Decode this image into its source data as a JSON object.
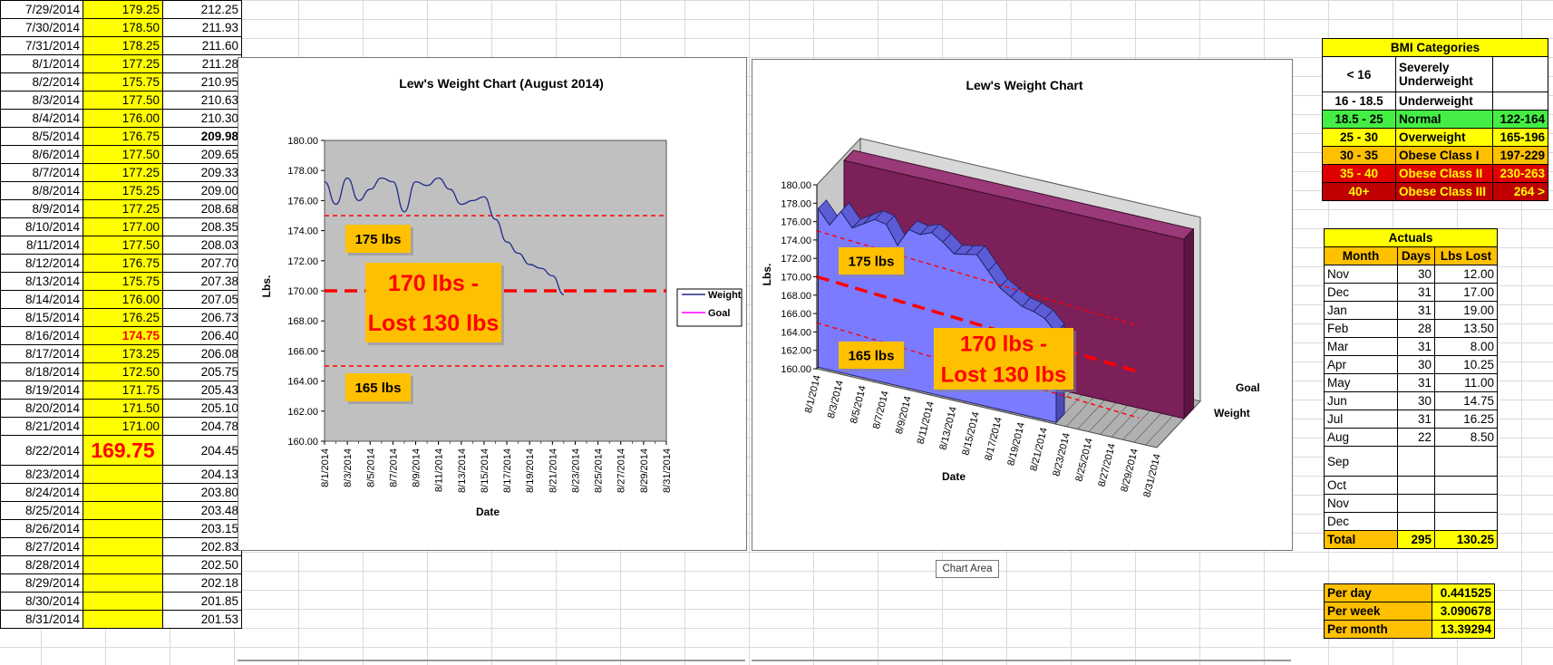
{
  "log": [
    {
      "date": "7/29/2014",
      "weight": "179.25",
      "goal": "212.25"
    },
    {
      "date": "7/30/2014",
      "weight": "178.50",
      "goal": "211.93"
    },
    {
      "date": "7/31/2014",
      "weight": "178.25",
      "goal": "211.60"
    },
    {
      "date": "8/1/2014",
      "weight": "177.25",
      "goal": "211.28"
    },
    {
      "date": "8/2/2014",
      "weight": "175.75",
      "goal": "210.95"
    },
    {
      "date": "8/3/2014",
      "weight": "177.50",
      "goal": "210.63"
    },
    {
      "date": "8/4/2014",
      "weight": "176.00",
      "goal": "210.30"
    },
    {
      "date": "8/5/2014",
      "weight": "176.75",
      "goal": "209.98"
    },
    {
      "date": "8/6/2014",
      "weight": "177.50",
      "goal": "209.65"
    },
    {
      "date": "8/7/2014",
      "weight": "177.25",
      "goal": "209.33"
    },
    {
      "date": "8/8/2014",
      "weight": "175.25",
      "goal": "209.00"
    },
    {
      "date": "8/9/2014",
      "weight": "177.25",
      "goal": "208.68"
    },
    {
      "date": "8/10/2014",
      "weight": "177.00",
      "goal": "208.35"
    },
    {
      "date": "8/11/2014",
      "weight": "177.50",
      "goal": "208.03"
    },
    {
      "date": "8/12/2014",
      "weight": "176.75",
      "goal": "207.70"
    },
    {
      "date": "8/13/2014",
      "weight": "175.75",
      "goal": "207.38"
    },
    {
      "date": "8/14/2014",
      "weight": "176.00",
      "goal": "207.05"
    },
    {
      "date": "8/15/2014",
      "weight": "176.25",
      "goal": "206.73"
    },
    {
      "date": "8/16/2014",
      "weight": "174.75",
      "goal": "206.40"
    },
    {
      "date": "8/17/2014",
      "weight": "173.25",
      "goal": "206.08"
    },
    {
      "date": "8/18/2014",
      "weight": "172.50",
      "goal": "205.75"
    },
    {
      "date": "8/19/2014",
      "weight": "171.75",
      "goal": "205.43"
    },
    {
      "date": "8/20/2014",
      "weight": "171.50",
      "goal": "205.10"
    },
    {
      "date": "8/21/2014",
      "weight": "171.00",
      "goal": "204.78"
    },
    {
      "date": "8/22/2014",
      "weight": "169.75",
      "goal": "204.45"
    },
    {
      "date": "8/23/2014",
      "weight": "",
      "goal": "204.13"
    },
    {
      "date": "8/24/2014",
      "weight": "",
      "goal": "203.80"
    },
    {
      "date": "8/25/2014",
      "weight": "",
      "goal": "203.48"
    },
    {
      "date": "8/26/2014",
      "weight": "",
      "goal": "203.15"
    },
    {
      "date": "8/27/2014",
      "weight": "",
      "goal": "202.83"
    },
    {
      "date": "8/28/2014",
      "weight": "",
      "goal": "202.50"
    },
    {
      "date": "8/29/2014",
      "weight": "",
      "goal": "202.18"
    },
    {
      "date": "8/30/2014",
      "weight": "",
      "goal": "201.85"
    },
    {
      "date": "8/31/2014",
      "weight": "",
      "goal": "201.53"
    }
  ],
  "chart_data": [
    {
      "type": "line",
      "title": "Lew's Weight Chart (August 2014)",
      "xlabel": "Date",
      "ylabel": "Lbs.",
      "ylim": [
        160,
        180
      ],
      "yticks": [
        "180.00",
        "178.00",
        "176.00",
        "174.00",
        "172.00",
        "170.00",
        "168.00",
        "166.00",
        "164.00",
        "162.00",
        "160.00"
      ],
      "xticks": [
        "8/1/2014",
        "8/3/2014",
        "8/5/2014",
        "8/7/2014",
        "8/9/2014",
        "8/11/2014",
        "8/13/2014",
        "8/15/2014",
        "8/17/2014",
        "8/19/2014",
        "8/21/2014",
        "8/23/2014",
        "8/25/2014",
        "8/27/2014",
        "8/29/2014",
        "8/31/2014"
      ],
      "legend": [
        "Weight",
        "Goal"
      ],
      "legend_placement": "right",
      "grid": false,
      "series": [
        {
          "name": "Weight",
          "x": [
            "8/1/2014",
            "8/2/2014",
            "8/3/2014",
            "8/4/2014",
            "8/5/2014",
            "8/6/2014",
            "8/7/2014",
            "8/8/2014",
            "8/9/2014",
            "8/10/2014",
            "8/11/2014",
            "8/12/2014",
            "8/13/2014",
            "8/14/2014",
            "8/15/2014",
            "8/16/2014",
            "8/17/2014",
            "8/18/2014",
            "8/19/2014",
            "8/20/2014",
            "8/21/2014",
            "8/22/2014"
          ],
          "values": [
            177.25,
            175.75,
            177.5,
            176.0,
            176.75,
            177.5,
            177.25,
            175.25,
            177.25,
            177.0,
            177.5,
            176.75,
            175.75,
            176.0,
            176.25,
            174.75,
            173.25,
            172.5,
            171.75,
            171.5,
            171.0,
            169.75
          ]
        }
      ],
      "reference_lines": [
        175,
        170,
        165
      ],
      "annotations": [
        "175 lbs",
        "165 lbs",
        "170 lbs -",
        "Lost 130 lbs"
      ],
      "colors": {
        "plot_bg": "#c0c0c0",
        "weight": "#1f2a8a",
        "goal": "#ff00ff",
        "ref": "#ff0000",
        "label_bg": "#ffc000"
      }
    },
    {
      "type": "area",
      "title": "Lew's Weight Chart",
      "xlabel": "Date",
      "ylabel": "Lbs.",
      "ylim": [
        160,
        180
      ],
      "yticks": [
        "180.00",
        "178.00",
        "176.00",
        "174.00",
        "172.00",
        "170.00",
        "168.00",
        "166.00",
        "164.00",
        "162.00",
        "160.00"
      ],
      "xticks": [
        "8/1/2014",
        "8/3/2014",
        "8/5/2014",
        "8/7/2014",
        "8/9/2014",
        "8/11/2014",
        "8/13/2014",
        "8/15/2014",
        "8/17/2014",
        "8/19/2014",
        "8/21/2014",
        "8/23/2014",
        "8/25/2014",
        "8/27/2014",
        "8/29/2014",
        "8/31/2014"
      ],
      "depth_series": [
        "Goal",
        "Weight"
      ],
      "reference_lines": [
        175,
        170,
        165
      ],
      "annotations": [
        "175 lbs",
        "165 lbs",
        "170 lbs -",
        "Lost 130 lbs"
      ],
      "colors": {
        "weight": "#7b7bff",
        "goal": "#7b2058",
        "floor": "#b0b0b0",
        "wall": "#c8c8c8"
      }
    }
  ],
  "bmi": {
    "title": "BMI Categories",
    "rows": [
      {
        "range": "< 16",
        "label": "Severely Underweight",
        "weights": "",
        "style": "c-white"
      },
      {
        "range": "16 - 18.5",
        "label": "Underweight",
        "weights": "",
        "style": "c-white"
      },
      {
        "range": "18.5 - 25",
        "label": "Normal",
        "weights": "122-164",
        "style": "c-green"
      },
      {
        "range": "25 - 30",
        "label": "Overweight",
        "weights": "165-196",
        "style": "c-yellow"
      },
      {
        "range": "30 - 35",
        "label": "Obese Class I",
        "weights": "197-229",
        "style": "c-orange"
      },
      {
        "range": "35 - 40",
        "label": "Obese Class II",
        "weights": "230-263",
        "style": "c-red"
      },
      {
        "range": "40+",
        "label": "Obese Class III",
        "weights": "264 >",
        "style": "c-darkred"
      }
    ]
  },
  "actuals": {
    "title": "Actuals",
    "headers": [
      "Month",
      "Days",
      "Lbs Lost"
    ],
    "rows": [
      {
        "month": "Nov",
        "days": "30",
        "lost": "12.00"
      },
      {
        "month": "Dec",
        "days": "31",
        "lost": "17.00"
      },
      {
        "month": "Jan",
        "days": "31",
        "lost": "19.00"
      },
      {
        "month": "Feb",
        "days": "28",
        "lost": "13.50"
      },
      {
        "month": "Mar",
        "days": "31",
        "lost": "8.00"
      },
      {
        "month": "Apr",
        "days": "30",
        "lost": "10.25"
      },
      {
        "month": "May",
        "days": "31",
        "lost": "11.00"
      },
      {
        "month": "Jun",
        "days": "30",
        "lost": "14.75"
      },
      {
        "month": "Jul",
        "days": "31",
        "lost": "16.25"
      },
      {
        "month": "Aug",
        "days": "22",
        "lost": "8.50"
      },
      {
        "month": "Sep",
        "days": "",
        "lost": ""
      },
      {
        "month": "Oct",
        "days": "",
        "lost": ""
      },
      {
        "month": "Nov",
        "days": "",
        "lost": ""
      },
      {
        "month": "Dec",
        "days": "",
        "lost": ""
      }
    ],
    "total": {
      "label": "Total",
      "days": "295",
      "lost": "130.25"
    }
  },
  "rates": [
    {
      "label": "Per day",
      "value": "0.441525"
    },
    {
      "label": "Per week",
      "value": "3.090678"
    },
    {
      "label": "Per month",
      "value": "13.39294"
    }
  ],
  "tooltip": "Chart Area"
}
